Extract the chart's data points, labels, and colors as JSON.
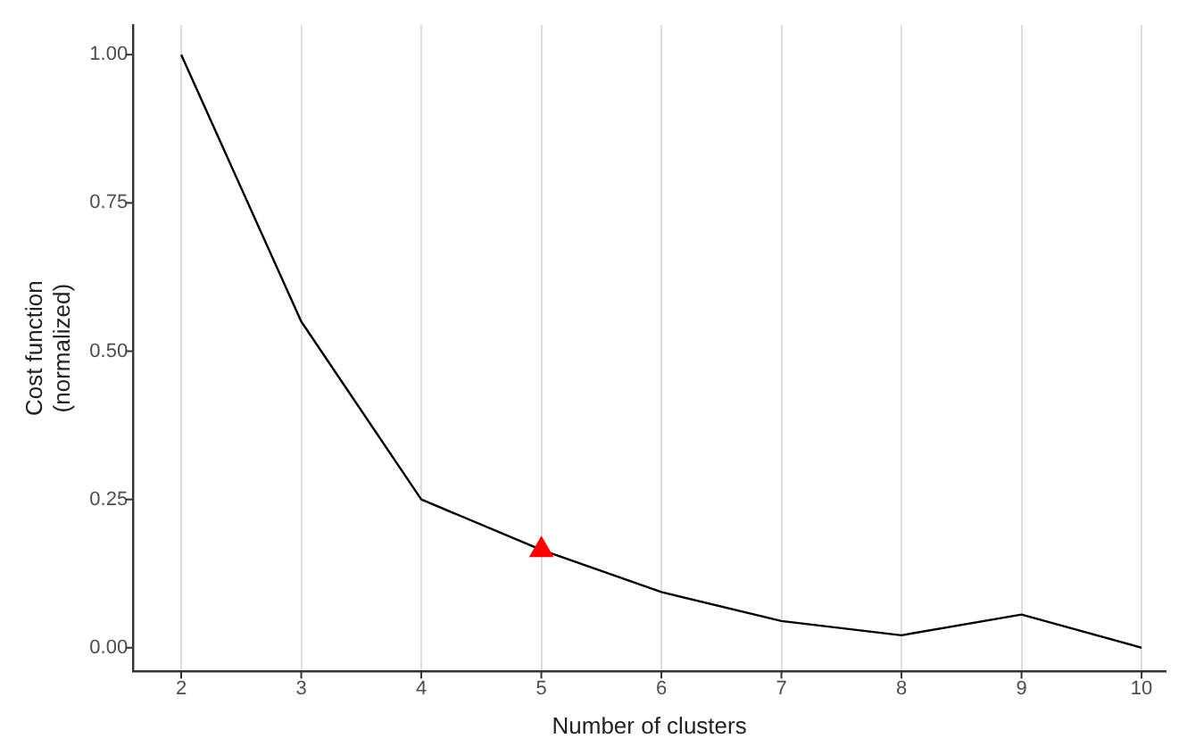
{
  "chart_data": {
    "type": "line",
    "xlabel": "Number of clusters",
    "ylabel": "Cost function\n(normalized)",
    "series": [
      {
        "color": "#000000",
        "marker": "none",
        "x": [
          2,
          3,
          4,
          5,
          6,
          7,
          8,
          9,
          10
        ],
        "values": [
          1.0,
          0.55,
          0.25,
          0.165,
          0.094,
          0.045,
          0.021,
          0.056,
          0.0
        ]
      },
      {
        "type": "scatter",
        "color": "#ff0000",
        "marker": "triangle",
        "x": [
          5
        ],
        "values": [
          0.165
        ]
      }
    ],
    "xlim": [
      1.6,
      10.2
    ],
    "xticks": [
      2,
      3,
      4,
      5,
      6,
      7,
      8,
      9,
      10
    ],
    "ylim": [
      -0.04,
      1.05
    ],
    "yticks": [
      {
        "value": 0,
        "label": "0.00"
      },
      {
        "value": 0.25,
        "label": "0.25"
      },
      {
        "value": 0.5,
        "label": "0.50"
      },
      {
        "value": 0.75,
        "label": "0.75"
      },
      {
        "value": 1,
        "label": "1.00"
      }
    ],
    "grid": "x",
    "legend": false
  }
}
